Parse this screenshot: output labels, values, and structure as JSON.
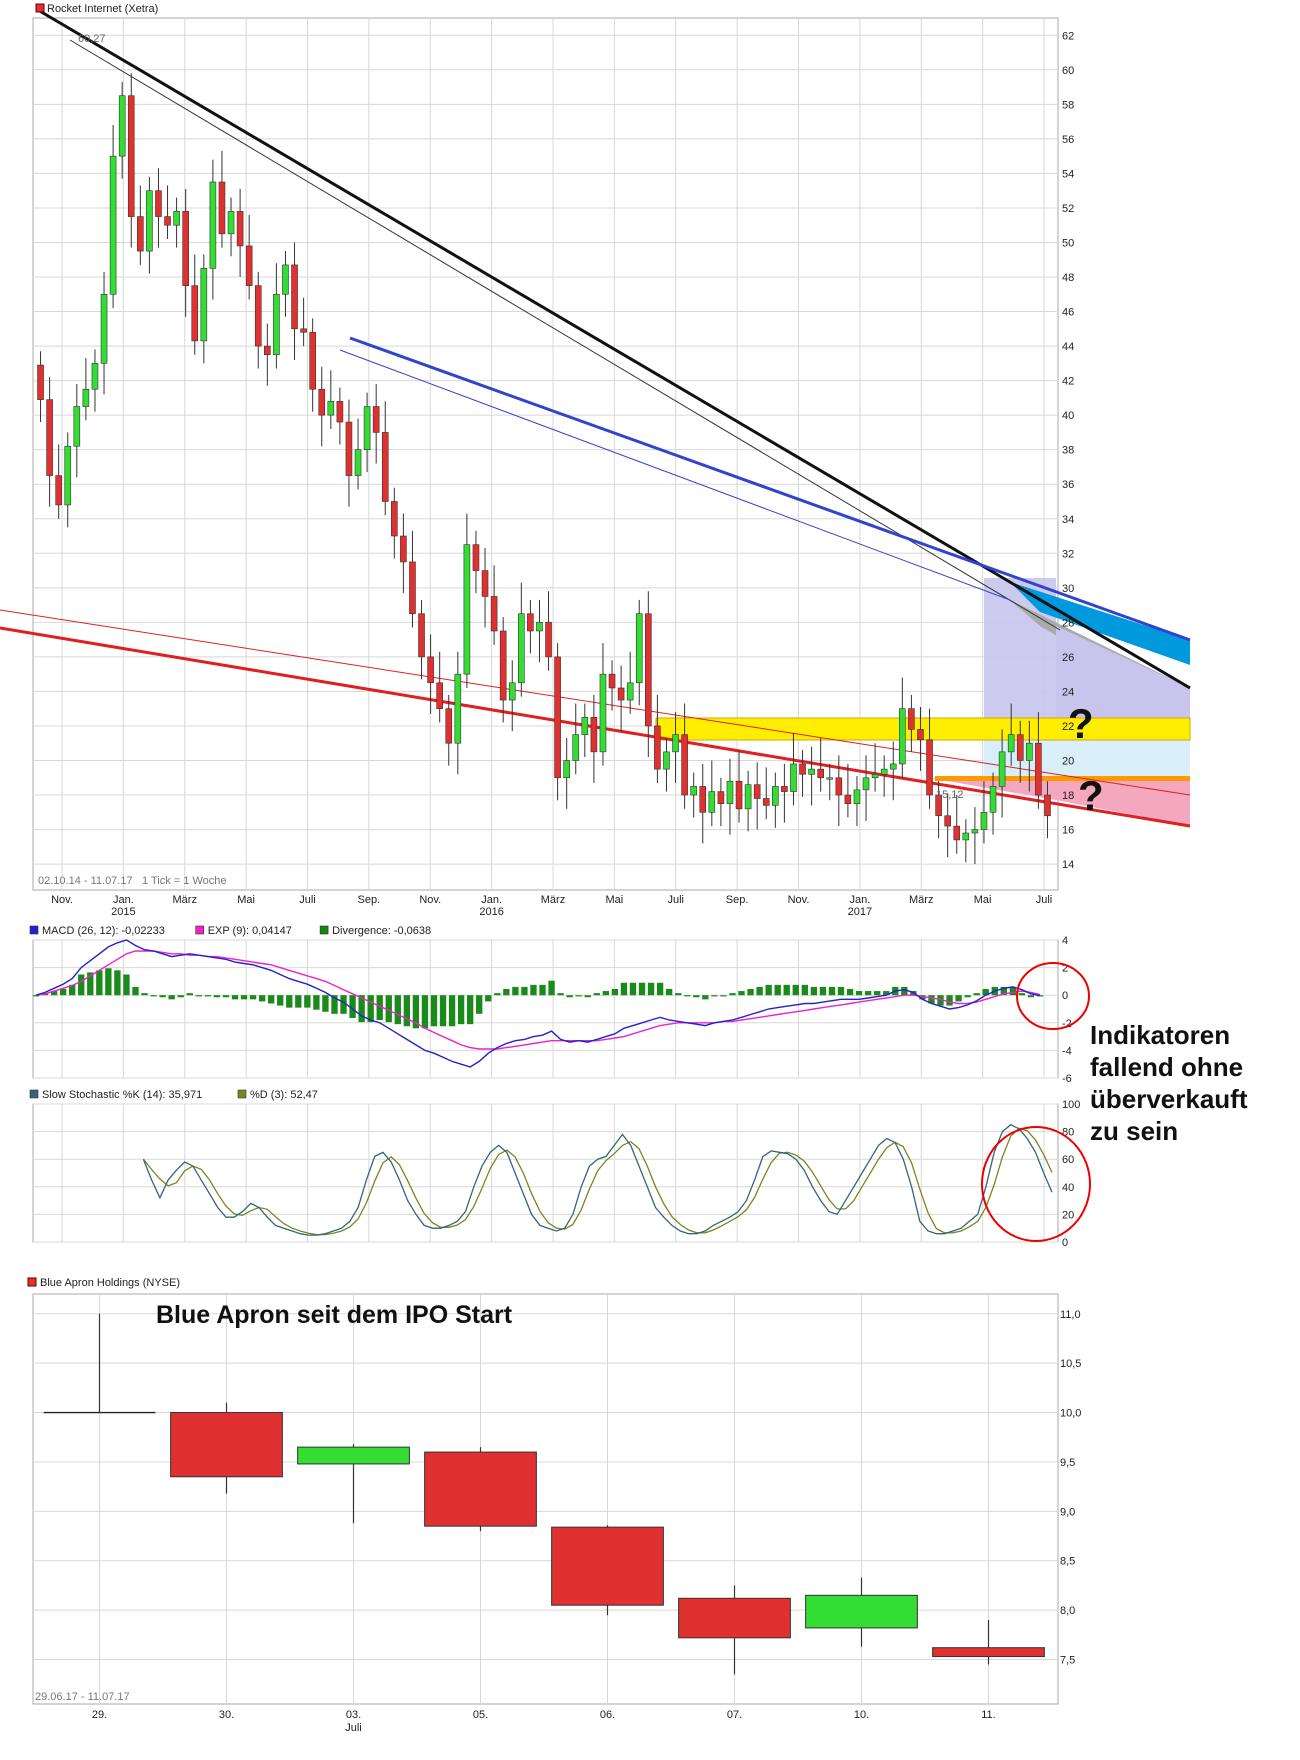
{
  "colors": {
    "up": "#33dd33",
    "down": "#e03030",
    "grid": "#d8d8d8",
    "frame": "#aaaaaa"
  },
  "chart_data": [
    {
      "type": "candlestick",
      "legend": "Rocket Internet (Xetra)",
      "date_range": "02.10.14 - 11.07.17",
      "tick_note": "1 Tick = 1 Woche",
      "ylim": [
        12.5,
        63
      ],
      "yticks": [
        "62",
        "60",
        "58",
        "56",
        "54",
        "52",
        "50",
        "48",
        "46",
        "44",
        "42",
        "40",
        "38",
        "36",
        "34",
        "32",
        "30",
        "28",
        "26",
        "24",
        "22",
        "20",
        "18",
        "16",
        "14"
      ],
      "xticks": [
        {
          "label": "Nov.",
          "sub": ""
        },
        {
          "label": "Jan.",
          "sub": "2015"
        },
        {
          "label": "März",
          "sub": ""
        },
        {
          "label": "Mai",
          "sub": ""
        },
        {
          "label": "Juli",
          "sub": ""
        },
        {
          "label": "Sep.",
          "sub": ""
        },
        {
          "label": "Nov.",
          "sub": ""
        },
        {
          "label": "Jan.",
          "sub": "2016"
        },
        {
          "label": "März",
          "sub": ""
        },
        {
          "label": "Mai",
          "sub": ""
        },
        {
          "label": "Juli",
          "sub": ""
        },
        {
          "label": "Sep.",
          "sub": ""
        },
        {
          "label": "Nov.",
          "sub": ""
        },
        {
          "label": "Jan.",
          "sub": "2017"
        },
        {
          "label": "März",
          "sub": ""
        },
        {
          "label": "Mai",
          "sub": ""
        },
        {
          "label": "Juli",
          "sub": ""
        }
      ],
      "high_label": "60,27",
      "low_label": "15,12",
      "weekly_close": [
        40.9,
        36.5,
        34.8,
        38.2,
        40.5,
        41.5,
        43.0,
        47.0,
        55.0,
        58.5,
        51.5,
        49.5,
        53.0,
        51.5,
        51.0,
        51.8,
        47.5,
        44.3,
        48.5,
        53.5,
        50.5,
        51.8,
        49.8,
        47.5,
        44.0,
        43.5,
        47.0,
        48.7,
        45.0,
        44.8,
        41.5,
        40.0,
        40.8,
        39.6,
        36.5,
        38.0,
        40.5,
        39.0,
        35.0,
        33.0,
        31.5,
        28.5,
        26.0,
        24.5,
        23.0,
        21.0,
        25.0,
        32.5,
        31.0,
        29.5,
        27.5,
        23.5,
        24.5,
        28.5,
        27.5,
        28.0,
        26.0,
        19.0,
        20.0,
        21.5,
        22.5,
        20.5,
        25.0,
        24.2,
        23.5,
        24.5,
        28.5,
        22.0,
        19.5,
        20.5,
        21.5,
        18.0,
        18.5,
        17.0,
        18.2,
        17.5,
        18.8,
        17.2,
        18.6,
        17.8,
        17.4,
        18.5,
        18.2,
        19.8,
        19.2,
        19.5,
        19.0,
        19.0,
        18.0,
        17.5,
        18.3,
        19.0,
        19.2,
        19.5,
        19.8,
        23.0,
        21.8,
        21.2,
        18.0,
        16.8,
        16.2,
        15.4,
        15.8,
        16.0,
        17.0,
        18.5,
        20.5,
        21.5,
        20.0,
        21.0,
        18.0,
        16.8
      ]
    },
    {
      "type": "line+bar",
      "legend": [
        {
          "label": "MACD (26, 12): -0,02233",
          "color": "#2222cc"
        },
        {
          "label": "EXP (9): 0,04147",
          "color": "#ee22cc"
        },
        {
          "label": "Divergence: -0,0638",
          "color": "#118811"
        }
      ],
      "ylim": [
        -6,
        4
      ],
      "yticks": [
        "4",
        "2",
        "0",
        "-2",
        "-4",
        "-6"
      ],
      "macd": [
        0,
        0.2,
        0.5,
        0.8,
        1.2,
        2.0,
        2.5,
        3.0,
        3.5,
        3.8,
        4.0,
        3.6,
        3.3,
        3.2,
        3.0,
        2.8,
        2.9,
        3.0,
        2.9,
        2.8,
        2.7,
        2.6,
        2.4,
        2.3,
        2.2,
        2.0,
        1.8,
        1.5,
        1.2,
        1.0,
        0.8,
        0.5,
        0.2,
        -0.2,
        -0.5,
        -1.0,
        -1.5,
        -1.8,
        -2.0,
        -2.4,
        -2.8,
        -3.2,
        -3.6,
        -4.0,
        -4.2,
        -4.5,
        -4.8,
        -5.0,
        -5.2,
        -4.8,
        -4.2,
        -3.8,
        -3.5,
        -3.3,
        -3.2,
        -3.0,
        -2.9,
        -2.6,
        -3.2,
        -3.4,
        -3.3,
        -3.4,
        -3.2,
        -3.0,
        -2.8,
        -2.4,
        -2.2,
        -2.0,
        -1.8,
        -1.6,
        -1.8,
        -1.9,
        -2.0,
        -2.1,
        -2.2,
        -2.0,
        -1.9,
        -1.8,
        -1.6,
        -1.4,
        -1.2,
        -1.0,
        -0.9,
        -0.8,
        -0.7,
        -0.6,
        -0.6,
        -0.5,
        -0.4,
        -0.3,
        -0.3,
        -0.3,
        -0.2,
        -0.1,
        0.0,
        0.3,
        0.4,
        0.2,
        -0.3,
        -0.6,
        -0.8,
        -1.0,
        -0.9,
        -0.7,
        -0.4,
        0.0,
        0.3,
        0.5,
        0.6,
        0.4,
        0.1,
        -0.02
      ],
      "signal": [
        0,
        0.1,
        0.3,
        0.5,
        0.7,
        1.0,
        1.4,
        1.8,
        2.2,
        2.6,
        3.0,
        3.2,
        3.2,
        3.2,
        3.1,
        3.0,
        3.0,
        2.9,
        2.9,
        2.8,
        2.8,
        2.7,
        2.6,
        2.5,
        2.4,
        2.3,
        2.2,
        2.0,
        1.8,
        1.6,
        1.4,
        1.2,
        1.0,
        0.7,
        0.4,
        0.1,
        -0.2,
        -0.5,
        -0.8,
        -1.1,
        -1.4,
        -1.7,
        -2.0,
        -2.4,
        -2.7,
        -3.0,
        -3.3,
        -3.6,
        -3.8,
        -3.9,
        -3.9,
        -3.9,
        -3.8,
        -3.7,
        -3.6,
        -3.5,
        -3.4,
        -3.3,
        -3.3,
        -3.3,
        -3.3,
        -3.3,
        -3.3,
        -3.2,
        -3.1,
        -3.0,
        -2.8,
        -2.6,
        -2.4,
        -2.2,
        -2.1,
        -2.0,
        -2.0,
        -2.0,
        -2.0,
        -2.0,
        -1.9,
        -1.9,
        -1.8,
        -1.7,
        -1.6,
        -1.5,
        -1.4,
        -1.3,
        -1.2,
        -1.1,
        -1.0,
        -0.9,
        -0.8,
        -0.7,
        -0.6,
        -0.5,
        -0.4,
        -0.3,
        -0.2,
        -0.1,
        0.0,
        0.0,
        -0.1,
        -0.2,
        -0.3,
        -0.5,
        -0.6,
        -0.6,
        -0.5,
        -0.3,
        -0.1,
        0.1,
        0.2,
        0.3,
        0.2,
        0.04
      ]
    },
    {
      "type": "line",
      "legend": [
        {
          "label": "Slow Stochastic %K (14): 35,971",
          "color": "#336677"
        },
        {
          "label": "%D (3): 52,47",
          "color": "#778822"
        }
      ],
      "ylim": [
        0,
        100
      ],
      "yticks": [
        "100",
        "80",
        "60",
        "40",
        "20",
        "0"
      ],
      "k": [
        null,
        null,
        null,
        null,
        null,
        null,
        null,
        null,
        null,
        null,
        null,
        null,
        null,
        60,
        45,
        32,
        45,
        52,
        58,
        55,
        45,
        35,
        25,
        18,
        18,
        22,
        28,
        25,
        18,
        12,
        10,
        8,
        6,
        5,
        5,
        6,
        8,
        10,
        15,
        25,
        45,
        62,
        65,
        58,
        45,
        30,
        20,
        12,
        10,
        10,
        12,
        15,
        22,
        40,
        55,
        65,
        70,
        65,
        50,
        35,
        20,
        12,
        10,
        8,
        10,
        20,
        40,
        55,
        60,
        62,
        70,
        78,
        70,
        55,
        40,
        25,
        18,
        12,
        8,
        6,
        6,
        8,
        12,
        15,
        18,
        22,
        30,
        45,
        62,
        66,
        65,
        64,
        60,
        52,
        40,
        30,
        22,
        20,
        30,
        40,
        50,
        60,
        70,
        75,
        72,
        60,
        40,
        15,
        8,
        6,
        6,
        8,
        10,
        15,
        20,
        40,
        65,
        80,
        85,
        82,
        75,
        65,
        50,
        36
      ]
    },
    {
      "type": "candlestick",
      "legend": "Blue Apron Holdings (NYSE)",
      "title": "Blue Apron seit dem IPO Start",
      "date_range": "29.06.17 - 11.07.17",
      "ylim": [
        7.05,
        11.2
      ],
      "yticks": [
        "11,0",
        "10,5",
        "10,0",
        "9,5",
        "9,0",
        "8,5",
        "8,0",
        "7,5"
      ],
      "categories": [
        "29.",
        "30.",
        "03.",
        "05.",
        "06.",
        "07.",
        "10.",
        "11."
      ],
      "category_sub": [
        "",
        "",
        "Juli",
        "",
        "",
        "",
        "",
        ""
      ],
      "open": [
        10.0,
        10.0,
        9.48,
        9.6,
        8.84,
        8.12,
        7.82,
        7.62
      ],
      "high": [
        11.0,
        10.1,
        9.68,
        9.65,
        8.86,
        8.25,
        8.33,
        7.9
      ],
      "low": [
        10.0,
        9.18,
        8.88,
        8.8,
        7.95,
        7.35,
        7.63,
        7.45
      ],
      "close": [
        10.0,
        9.35,
        9.65,
        8.85,
        8.05,
        7.72,
        8.15,
        7.53
      ]
    }
  ],
  "annotations": {
    "question1": "?",
    "question2": "?",
    "indicator_note": [
      "Indikatoren",
      "fallend ohne",
      "überverkauft",
      "zu sein"
    ]
  }
}
